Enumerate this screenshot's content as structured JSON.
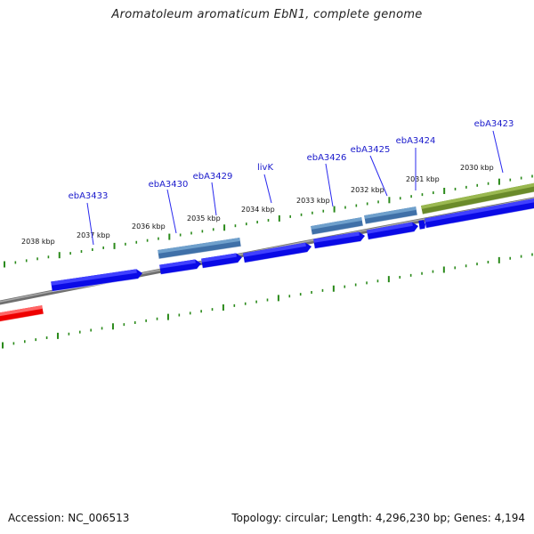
{
  "title": "Aromatoleum aromaticum EbN1, complete genome",
  "footer": {
    "accession": "Accession: NC_006513",
    "topology": "Topology: circular; Length: 4,296,230 bp; Genes: 4,194"
  },
  "scale": {
    "unit_label": "kbp",
    "labels": [
      "2038 kbp",
      "2037 kbp",
      "2036 kbp",
      "2035 kbp",
      "2034 kbp",
      "2033 kbp",
      "2032 kbp",
      "2031 kbp",
      "2030 kbp"
    ]
  },
  "gene_labels": [
    "ebA3433",
    "ebA3430",
    "ebA3429",
    "livK",
    "ebA3426",
    "ebA3425",
    "ebA3424",
    "ebA3423"
  ],
  "colors": {
    "backbone": "#888888",
    "tick": "#2a8a1a",
    "cds": "#0a0ae6",
    "cds_light": "#4040ff",
    "gene": "#3f70a8",
    "gene_light": "#6fa0cc",
    "green_feature": "#6a8a2a",
    "green_feature_light": "#9ab850",
    "red_feature": "#ee0000",
    "label": "#1a1acc",
    "label_line": "#2a2aee"
  }
}
